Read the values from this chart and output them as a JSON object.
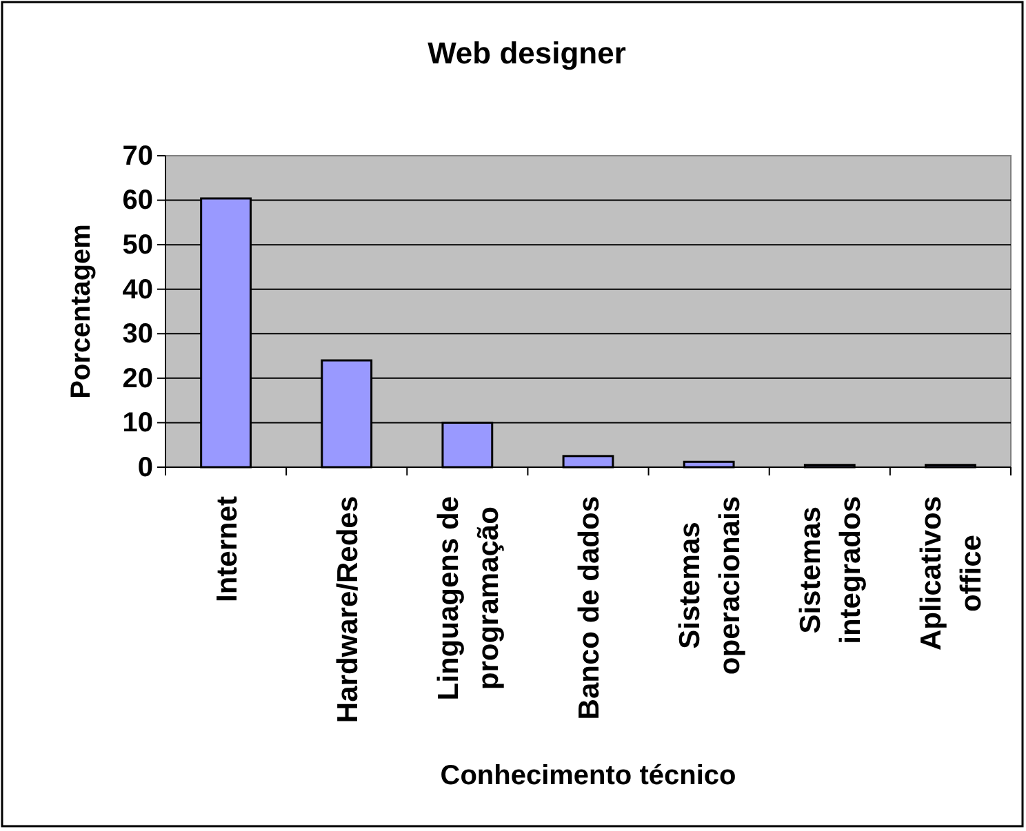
{
  "chart_data": {
    "type": "bar",
    "title": "Web designer",
    "xlabel": "Conhecimento técnico",
    "ylabel": "Porcentagem",
    "categories": [
      "Internet",
      "Hardware/Redes",
      "Linguagens de programação",
      "Banco de dados",
      "Sistemas operacionais",
      "Sistemas integrados",
      "Aplicativos office"
    ],
    "values": [
      60.4,
      24,
      10,
      2.5,
      1.2,
      0.5,
      0.5
    ],
    "color": "#9999ff",
    "ylim": [
      0,
      70
    ],
    "yticks": [
      0,
      10,
      20,
      30,
      40,
      50,
      60,
      70
    ],
    "grid": "y"
  }
}
